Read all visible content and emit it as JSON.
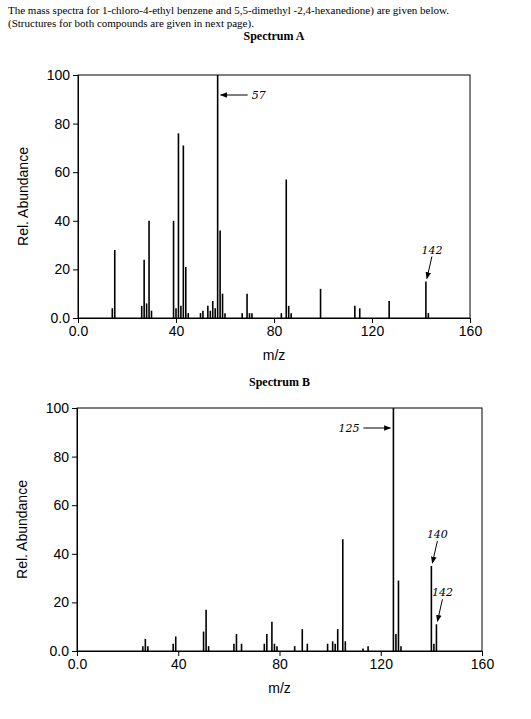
{
  "header": {
    "lines": [
      "The mass spectra for 1-chloro-4-ethyl benzene and 5,5-dimethyl -2,4-hexanedione) are given below.",
      "(Structures for both compounds are given in next page)."
    ]
  },
  "chart_data": [
    {
      "type": "bar",
      "title": "Spectrum A",
      "x_label": "m/z",
      "y_label": "Rel. Abundance",
      "color": "#000000",
      "x": [
        14,
        15,
        26,
        27,
        28,
        29,
        30,
        39,
        40,
        41,
        42,
        43,
        44,
        45,
        50,
        51,
        53,
        54,
        55,
        56,
        57,
        58,
        59,
        60,
        67,
        69,
        70,
        71,
        83,
        85,
        86,
        87,
        99,
        113,
        115,
        127,
        142,
        143
      ],
      "values": [
        4,
        28,
        5,
        24,
        6,
        40,
        3,
        40,
        4,
        76,
        5,
        71,
        21,
        2,
        2,
        3,
        5,
        3,
        7,
        4,
        100,
        36,
        10,
        2,
        2,
        10,
        2,
        2,
        2,
        57,
        5,
        2,
        12,
        5,
        4,
        7,
        15,
        2
      ],
      "xlim": [
        0,
        160
      ],
      "xticks": [
        {
          "value": 0,
          "label": "0.0"
        },
        40,
        80,
        120,
        160
      ],
      "ylim": [
        0,
        100
      ],
      "yticks": [
        {
          "value": 0,
          "label": "0.0"
        },
        20,
        40,
        60,
        80,
        100
      ],
      "annotations": [
        {
          "text": "57",
          "x": 57
        },
        {
          "text": "142",
          "x": 142
        }
      ]
    },
    {
      "type": "bar",
      "title": "Spectrum B",
      "x_label": "m/z",
      "y_label": "Rel. Abundance",
      "color": "#000000",
      "x": [
        26,
        27,
        28,
        38,
        39,
        50,
        51,
        52,
        62,
        63,
        65,
        74,
        75,
        77,
        78,
        79,
        86,
        89,
        91,
        99,
        101,
        102,
        103,
        105,
        106,
        113,
        115,
        125,
        126,
        127,
        128,
        140,
        141,
        142
      ],
      "values": [
        2,
        5,
        2,
        3,
        6,
        8,
        17,
        2,
        3,
        7,
        3,
        3,
        7,
        12,
        3,
        2,
        2,
        9,
        3,
        3,
        4,
        3,
        9,
        46,
        4,
        1,
        2,
        100,
        7,
        29,
        2,
        35,
        3,
        11
      ],
      "xlim": [
        0,
        160
      ],
      "xticks": [
        {
          "value": 0,
          "label": "0.0"
        },
        40,
        80,
        120,
        160
      ],
      "ylim": [
        0,
        100
      ],
      "yticks": [
        {
          "value": 0,
          "label": "0.0"
        },
        20,
        40,
        60,
        80,
        100
      ],
      "annotations": [
        {
          "text": "125",
          "x": 125
        },
        {
          "text": "140",
          "x": 140
        },
        {
          "text": "142",
          "x": 142
        }
      ]
    }
  ]
}
